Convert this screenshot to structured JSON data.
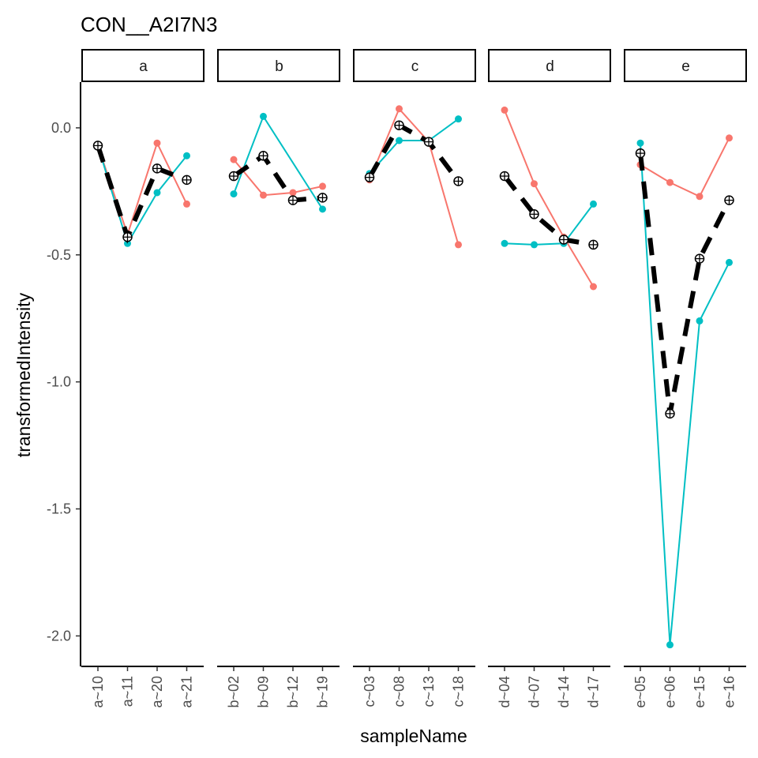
{
  "chart_data": {
    "type": "line",
    "title": "CON__A2I7N3",
    "xlabel": "sampleName",
    "ylabel": "transformedIntensity",
    "ylim": [
      -2.12,
      0.18
    ],
    "yticks": [
      {
        "value": 0.0,
        "label": "0.0"
      },
      {
        "value": -0.5,
        "label": "-0.5"
      },
      {
        "value": -1.0,
        "label": "-1.0"
      },
      {
        "value": -1.5,
        "label": "-1.5"
      },
      {
        "value": -2.0,
        "label": "-2.0"
      }
    ],
    "grid": false,
    "legend": "none",
    "facets": [
      {
        "label": "a",
        "categories": [
          "a~10",
          "a~11",
          "a~20",
          "a~21"
        ],
        "series": [
          {
            "values": [
              -0.07,
              -0.42,
              -0.06,
              -0.3
            ],
            "color": "#F8766D"
          },
          {
            "values": [
              -0.07,
              -0.455,
              -0.255,
              -0.11
            ],
            "color": "#00BFC4"
          },
          {
            "values": [
              -0.07,
              -0.43,
              -0.16,
              -0.205
            ],
            "color": "#000000",
            "dashed": true
          }
        ]
      },
      {
        "label": "b",
        "categories": [
          "b~02",
          "b~09",
          "b~12",
          "b~19"
        ],
        "series": [
          {
            "values": [
              -0.125,
              -0.265,
              -0.255,
              -0.23
            ],
            "color": "#F8766D"
          },
          {
            "values": [
              -0.26,
              0.045,
              null,
              -0.32
            ],
            "color": "#00BFC4"
          },
          {
            "values": [
              -0.19,
              -0.11,
              -0.285,
              -0.275
            ],
            "color": "#000000",
            "dashed": true
          }
        ]
      },
      {
        "label": "c",
        "categories": [
          "c~03",
          "c~08",
          "c~13",
          "c~18"
        ],
        "series": [
          {
            "values": [
              -0.205,
              0.075,
              -0.055,
              -0.46
            ],
            "color": "#F8766D"
          },
          {
            "values": [
              -0.18,
              -0.05,
              -0.05,
              0.035
            ],
            "color": "#00BFC4"
          },
          {
            "values": [
              -0.195,
              0.01,
              -0.055,
              -0.21
            ],
            "color": "#000000",
            "dashed": true
          }
        ]
      },
      {
        "label": "d",
        "categories": [
          "d~04",
          "d~07",
          "d~14",
          "d~17"
        ],
        "series": [
          {
            "values": [
              0.07,
              -0.22,
              -0.43,
              -0.625
            ],
            "color": "#F8766D"
          },
          {
            "values": [
              -0.455,
              -0.46,
              -0.455,
              -0.3
            ],
            "color": "#00BFC4"
          },
          {
            "values": [
              -0.19,
              -0.34,
              -0.44,
              -0.46
            ],
            "color": "#000000",
            "dashed": true
          }
        ]
      },
      {
        "label": "e",
        "categories": [
          "e~05",
          "e~06",
          "e~15",
          "e~16"
        ],
        "series": [
          {
            "values": [
              -0.145,
              -0.215,
              -0.27,
              -0.04
            ],
            "color": "#F8766D"
          },
          {
            "values": [
              -0.06,
              -2.035,
              -0.76,
              -0.53
            ],
            "color": "#00BFC4"
          },
          {
            "values": [
              -0.1,
              -1.125,
              -0.515,
              -0.285
            ],
            "color": "#000000",
            "dashed": true
          }
        ]
      }
    ]
  }
}
